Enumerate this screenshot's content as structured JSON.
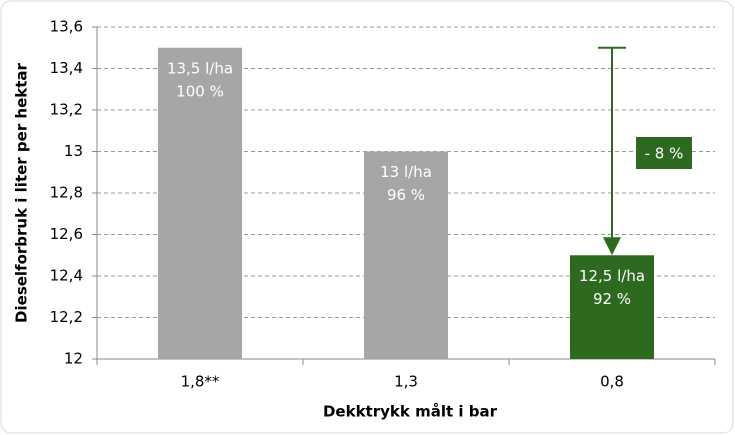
{
  "chart_data": {
    "type": "bar",
    "x_label": "Dekktrykk målt i bar",
    "y_label": "Dieselforbruk i liter per hektar",
    "categories": [
      "1,8**",
      "1,3",
      "0,8"
    ],
    "values": [
      13.5,
      13,
      12.5
    ],
    "value_labels": [
      "13,5 l/ha",
      "13 l/ha",
      "12,5 l/ha"
    ],
    "percent_values": [
      100,
      96,
      92
    ],
    "percent_labels": [
      "100 %",
      "96 %",
      "92 %"
    ],
    "colors": [
      "#a6a6a6",
      "#a6a6a6",
      "#2d6a1f"
    ],
    "ylim": [
      12,
      13.6
    ],
    "yticks": [
      12,
      {
        "value": 12.2,
        "label": "12,2"
      },
      {
        "value": 12.4,
        "label": "12,4"
      },
      {
        "value": 12.6,
        "label": "12,6"
      },
      {
        "value": 12.8,
        "label": "12,8"
      },
      13,
      {
        "value": 13.2,
        "label": "13,2"
      },
      {
        "value": 13.4,
        "label": "13,4"
      },
      {
        "value": 13.6,
        "label": "13,6"
      }
    ],
    "grid": true,
    "annotation": {
      "text": "- 8 %",
      "value": -8,
      "from": 13.5,
      "to": 12.5,
      "color": "#2d6a1f"
    }
  }
}
